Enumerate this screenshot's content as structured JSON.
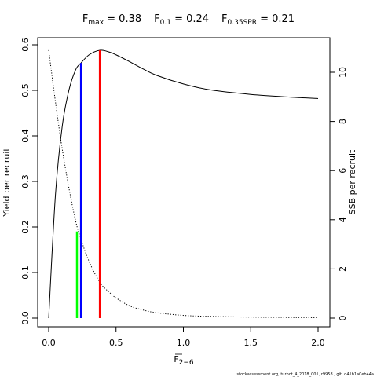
{
  "title": {
    "fmax": {
      "base": "F",
      "sub": "max",
      "value": " = 0.38"
    },
    "f01": {
      "base": "F",
      "sub": "0.1",
      "value": " = 0.24"
    },
    "fspr": {
      "base": "F",
      "sub": "0.35SPR",
      "value": " = 0.21"
    }
  },
  "axes": {
    "xlabel_base": "F",
    "xlabel_sub": "2−6",
    "ylabel_left": "Yield per recruit",
    "ylabel_right": "SSB per recruit"
  },
  "footer": "stockassessment.org, turbot_4_2018_001, r9958 , git: d41b1a0eb44a",
  "colors": {
    "fspr": "#00ff00",
    "f01": "#0000ff",
    "fmax": "#ff0000",
    "curve": "#000000"
  },
  "chart_data": {
    "type": "line",
    "xlabel": "F 2-6",
    "ylabel": "Yield per recruit",
    "ylabel_right": "SSB per recruit",
    "xlim": [
      0,
      2
    ],
    "ylim_left": [
      0,
      0.6
    ],
    "ylim_right": [
      0,
      11
    ],
    "x_ticks": [
      "0.0",
      "0.5",
      "1.0",
      "1.5",
      "2.0"
    ],
    "y_left_ticks": [
      "0.0",
      "0.1",
      "0.2",
      "0.3",
      "0.4",
      "0.5",
      "0.6"
    ],
    "y_right_ticks": [
      "0",
      "2",
      "4",
      "6",
      "8",
      "10"
    ],
    "series": [
      {
        "style": "solid",
        "axis": "left",
        "x": [
          0,
          0.05,
          0.1,
          0.15,
          0.2,
          0.24,
          0.3,
          0.38,
          0.45,
          0.5,
          0.6,
          0.7,
          0.8,
          1.0,
          1.2,
          1.5,
          1.8,
          2.0
        ],
        "y": [
          0,
          0.27,
          0.42,
          0.5,
          0.545,
          0.56,
          0.578,
          0.588,
          0.584,
          0.578,
          0.563,
          0.547,
          0.533,
          0.514,
          0.501,
          0.491,
          0.485,
          0.482
        ]
      },
      {
        "style": "dotted",
        "axis": "right",
        "x": [
          0,
          0.05,
          0.1,
          0.15,
          0.2,
          0.24,
          0.3,
          0.38,
          0.45,
          0.5,
          0.6,
          0.7,
          0.8,
          1.0,
          1.2,
          1.5,
          1.8,
          2.0
        ],
        "y": [
          10.9,
          8.8,
          6.9,
          5.3,
          3.95,
          3.2,
          2.3,
          1.45,
          1.05,
          0.82,
          0.5,
          0.33,
          0.22,
          0.11,
          0.07,
          0.04,
          0.025,
          0.02
        ]
      }
    ],
    "reference_lines": [
      {
        "name": "F0.35SPR",
        "x": 0.21,
        "y": 0.19,
        "color": "#00ff00"
      },
      {
        "name": "F0.1",
        "x": 0.24,
        "y": 0.56,
        "color": "#0000ff"
      },
      {
        "name": "Fmax",
        "x": 0.38,
        "y": 0.588,
        "color": "#ff0000"
      }
    ]
  }
}
